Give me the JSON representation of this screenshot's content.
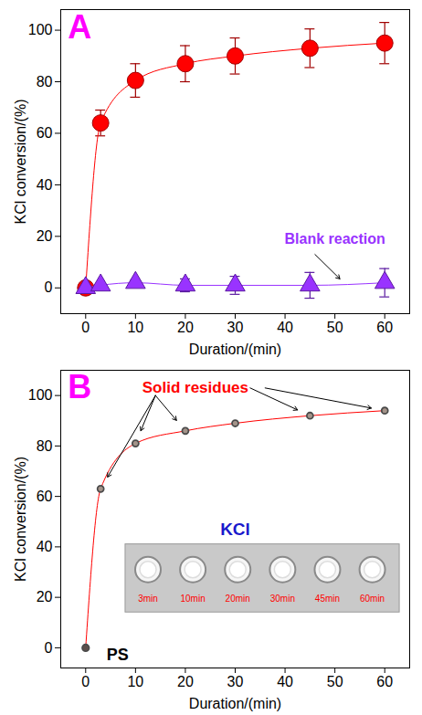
{
  "chart_data": [
    {
      "type": "line",
      "title": "A",
      "xlabel": "Duration/(min)",
      "ylabel": "KCl conversion/(%)",
      "x": [
        0,
        3,
        10,
        20,
        30,
        45,
        60
      ],
      "xlim": [
        -5,
        65
      ],
      "ylim": [
        -10,
        108
      ],
      "xticks": [
        0,
        10,
        20,
        30,
        40,
        50,
        60
      ],
      "yticks": [
        0,
        20,
        40,
        60,
        80,
        100
      ],
      "series": [
        {
          "color": "#ff0000",
          "marker": "circle",
          "values": [
            0,
            64,
            80.5,
            87,
            90,
            93,
            95
          ],
          "errors": [
            0,
            5,
            6.5,
            7,
            7,
            7.5,
            8
          ]
        },
        {
          "name": "Blank reaction",
          "color": "#9933ff",
          "marker": "triangle",
          "values": [
            0,
            1,
            2,
            1,
            1,
            1,
            2
          ],
          "errors": [
            0,
            0.5,
            1,
            2.5,
            3.5,
            5,
            5.5
          ]
        }
      ]
    },
    {
      "type": "line",
      "title": "B",
      "xlabel": "Duration/(min)",
      "ylabel": "KCl conversion/(%)",
      "x": [
        0,
        3,
        10,
        20,
        30,
        45,
        60
      ],
      "xlim": [
        -5,
        65
      ],
      "ylim": [
        -8,
        110
      ],
      "xticks": [
        0,
        10,
        20,
        30,
        40,
        50,
        60
      ],
      "yticks": [
        0,
        20,
        40,
        60,
        80,
        100
      ],
      "series": [
        {
          "color": "#ff0000",
          "values": [
            0,
            63,
            81,
            86,
            89,
            92,
            94
          ]
        }
      ],
      "annotations": {
        "solid_residues": "Solid residues",
        "kcl": "KCl",
        "kcl_times": [
          "3min",
          "10min",
          "20min",
          "30min",
          "45min",
          "60min"
        ],
        "ps": "PS"
      }
    }
  ]
}
